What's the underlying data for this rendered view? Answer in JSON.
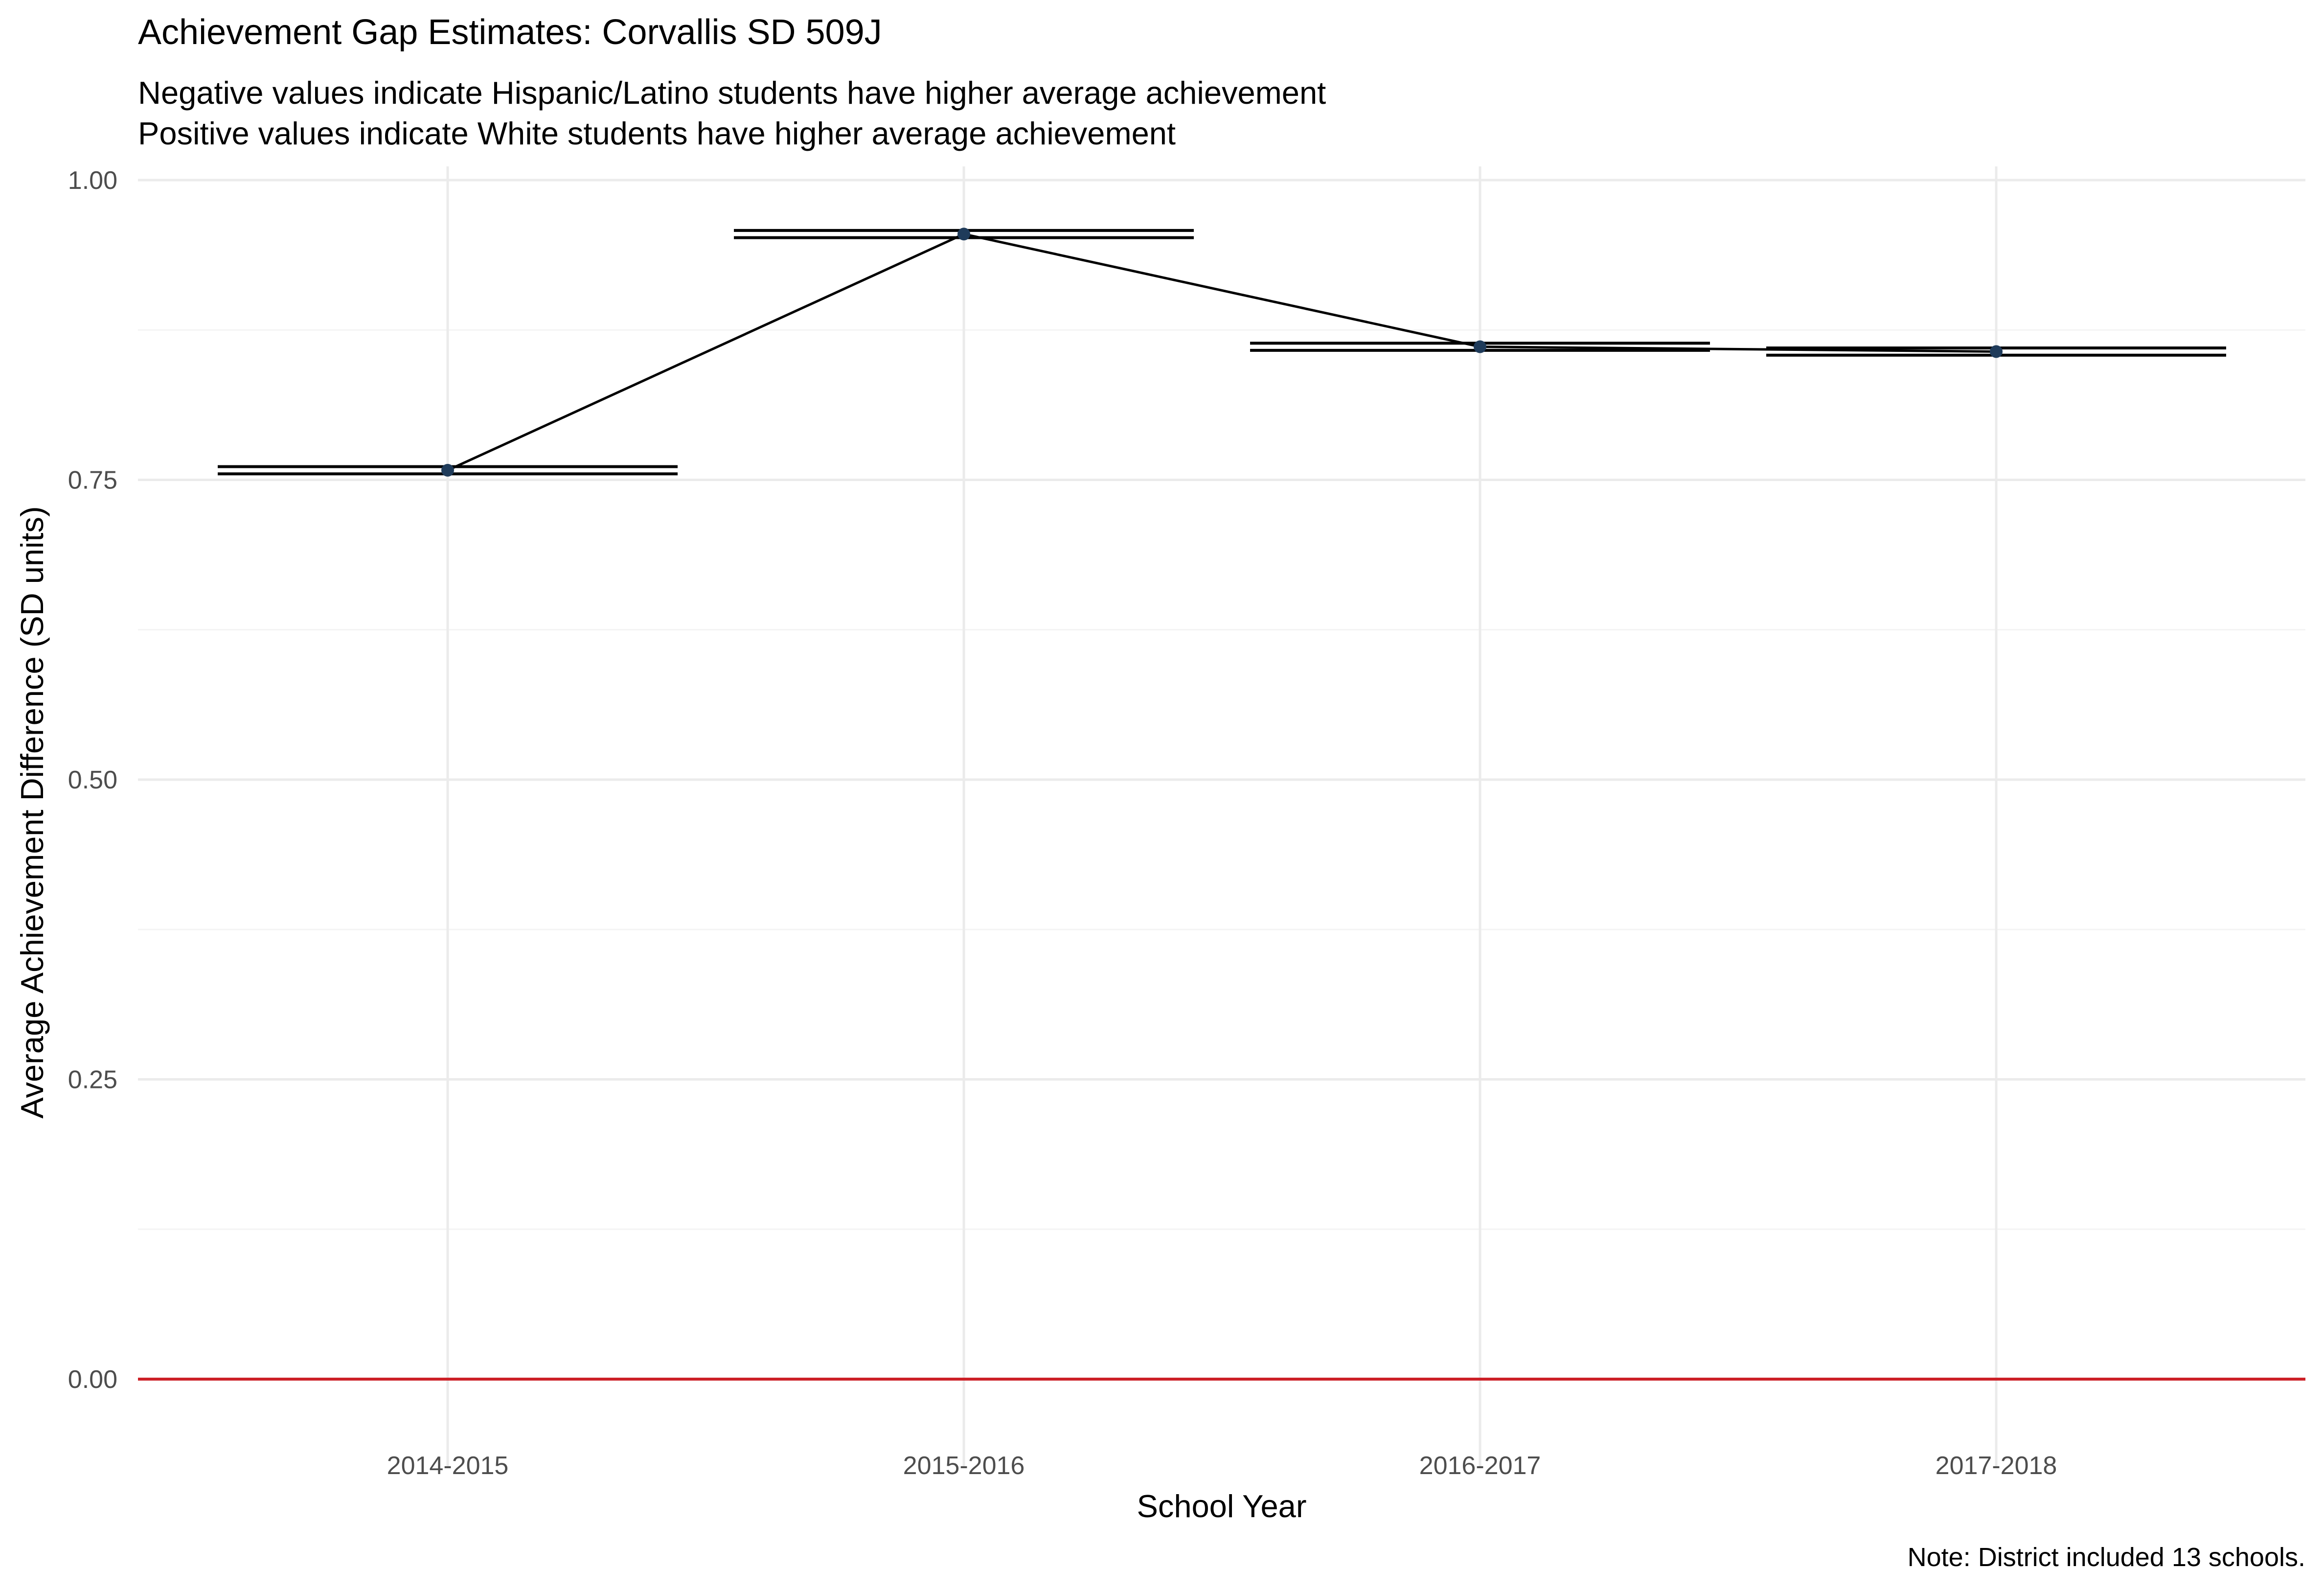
{
  "chart_data": {
    "type": "line",
    "title": "Achievement Gap Estimates: Corvallis SD 509J",
    "subtitle_lines": [
      "Negative values indicate Hispanic/Latino students have higher average achievement",
      "Positive values indicate White students have higher average achievement"
    ],
    "xlabel": "School Year",
    "ylabel": "Average Achievement Difference (SD units)",
    "caption": "Note: District included 13 schools.",
    "categories": [
      "2014-2015",
      "2015-2016",
      "2016-2017",
      "2017-2018"
    ],
    "series": [
      {
        "values": [
          0.758,
          0.955,
          0.861,
          0.857
        ],
        "lower": [
          0.755,
          0.952,
          0.858,
          0.854
        ],
        "upper": [
          0.761,
          0.958,
          0.864,
          0.86
        ]
      }
    ],
    "ylim": [
      0,
      1
    ],
    "yticks": [
      0,
      0.25,
      0.5,
      0.75,
      1
    ],
    "ytick_labels": [
      "0.00",
      "0.25",
      "0.50",
      "0.75",
      "1.00"
    ],
    "reference_line": 0,
    "grid": true,
    "colors": {
      "line": "#000000",
      "point": "#1f3b5a",
      "reference": "#cc2027",
      "grid_major": "#ebebeb",
      "grid_minor": "#f4f4f4",
      "title": "#000000",
      "axis_text": "#4d4d4d"
    }
  }
}
